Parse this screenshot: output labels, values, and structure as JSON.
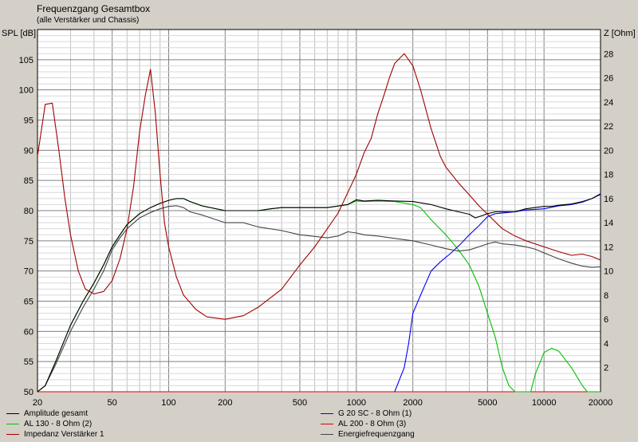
{
  "title": "Frequenzgang Gesamtbox",
  "subtitle": "(alle Verstärker und Chassis)",
  "chart_data": {
    "type": "line",
    "ylabel_left": "SPL [dB]",
    "ylabel_right": "Z [Ohm]",
    "xscale": "log",
    "xlim": [
      20,
      20000
    ],
    "ylim_left": [
      50,
      110
    ],
    "ylim_right": [
      0,
      30
    ],
    "x_ticks": [
      20,
      50,
      100,
      200,
      500,
      1000,
      2000,
      5000,
      10000,
      20000
    ],
    "x_tick_labels": [
      "20",
      "50",
      "100",
      "200",
      "500",
      "1000",
      "2000",
      "5000",
      "10000",
      "20000"
    ],
    "y_left_ticks": [
      50,
      55,
      60,
      65,
      70,
      75,
      80,
      85,
      90,
      95,
      100,
      105
    ],
    "y_right_ticks": [
      2,
      4,
      6,
      8,
      10,
      12,
      14,
      16,
      18,
      20,
      22,
      24,
      26,
      28
    ],
    "grid": true,
    "legend_position": "bottom",
    "series": [
      {
        "name": "Amplitude gesamt",
        "color": "#000000",
        "axis": "left",
        "points": [
          [
            20,
            50
          ],
          [
            22,
            51
          ],
          [
            25,
            55
          ],
          [
            30,
            61
          ],
          [
            35,
            65
          ],
          [
            40,
            68
          ],
          [
            45,
            71
          ],
          [
            50,
            74
          ],
          [
            55,
            76
          ],
          [
            60,
            77.7
          ],
          [
            70,
            79.5
          ],
          [
            80,
            80.5
          ],
          [
            90,
            81.2
          ],
          [
            100,
            81.7
          ],
          [
            110,
            82
          ],
          [
            120,
            82
          ],
          [
            130,
            81.5
          ],
          [
            150,
            80.8
          ],
          [
            200,
            80
          ],
          [
            250,
            80
          ],
          [
            300,
            80
          ],
          [
            350,
            80.3
          ],
          [
            400,
            80.5
          ],
          [
            500,
            80.5
          ],
          [
            700,
            80.5
          ],
          [
            900,
            81
          ],
          [
            1000,
            81.8
          ],
          [
            1100,
            81.6
          ],
          [
            1300,
            81.7
          ],
          [
            1600,
            81.6
          ],
          [
            2000,
            81.5
          ],
          [
            2500,
            81
          ],
          [
            3000,
            80.3
          ],
          [
            3500,
            79.8
          ],
          [
            4000,
            79.4
          ],
          [
            4300,
            78.8
          ],
          [
            4700,
            79.2
          ],
          [
            5000,
            79.5
          ],
          [
            5500,
            79.8
          ],
          [
            7000,
            79.8
          ],
          [
            8000,
            80.3
          ],
          [
            10000,
            80.7
          ],
          [
            11000,
            80.7
          ],
          [
            12000,
            80.9
          ],
          [
            14000,
            81.1
          ],
          [
            16000,
            81.5
          ],
          [
            18000,
            82
          ],
          [
            20000,
            82.7
          ]
        ]
      },
      {
        "name": "G 20 SC - 8 Ohm (1)",
        "color": "#0000ff",
        "axis": "left",
        "points": [
          [
            1600,
            50
          ],
          [
            1800,
            54
          ],
          [
            1900,
            58
          ],
          [
            2000,
            63
          ],
          [
            2200,
            66
          ],
          [
            2500,
            70
          ],
          [
            2800,
            71.5
          ],
          [
            3200,
            73
          ],
          [
            3600,
            74.5
          ],
          [
            4000,
            76
          ],
          [
            4500,
            77.5
          ],
          [
            5000,
            79
          ],
          [
            5500,
            79.5
          ],
          [
            7000,
            79.8
          ],
          [
            8000,
            80.1
          ],
          [
            10000,
            80.3
          ],
          [
            12000,
            80.8
          ],
          [
            14000,
            81
          ],
          [
            16000,
            81.4
          ],
          [
            18000,
            82
          ],
          [
            20000,
            82.8
          ]
        ]
      },
      {
        "name": "AL 130 - 8 Ohm (2)",
        "color": "#00c000",
        "axis": "left",
        "points": [
          [
            20,
            50
          ],
          [
            22,
            51
          ],
          [
            25,
            55
          ],
          [
            30,
            61
          ],
          [
            35,
            65
          ],
          [
            40,
            68
          ],
          [
            45,
            71
          ],
          [
            50,
            74
          ],
          [
            55,
            76
          ],
          [
            60,
            77.7
          ],
          [
            70,
            79.5
          ],
          [
            80,
            80.5
          ],
          [
            90,
            81.2
          ],
          [
            100,
            81.7
          ],
          [
            110,
            82
          ],
          [
            120,
            82
          ],
          [
            130,
            81.5
          ],
          [
            150,
            80.8
          ],
          [
            200,
            80
          ],
          [
            250,
            80
          ],
          [
            300,
            80
          ],
          [
            350,
            80.3
          ],
          [
            400,
            80.5
          ],
          [
            500,
            80.5
          ],
          [
            700,
            80.5
          ],
          [
            900,
            81
          ],
          [
            1000,
            81.6
          ],
          [
            1100,
            81.5
          ],
          [
            1300,
            81.6
          ],
          [
            1600,
            81.5
          ],
          [
            2000,
            81
          ],
          [
            2200,
            80.5
          ],
          [
            2500,
            78.5
          ],
          [
            3000,
            76
          ],
          [
            3500,
            73.5
          ],
          [
            4000,
            71
          ],
          [
            4500,
            67.5
          ],
          [
            5000,
            63
          ],
          [
            5500,
            59
          ],
          [
            6000,
            54
          ],
          [
            6500,
            51
          ],
          [
            7000,
            50
          ],
          [
            8500,
            50
          ],
          [
            9000,
            53
          ],
          [
            10000,
            56.5
          ],
          [
            11000,
            57.2
          ],
          [
            12000,
            56.7
          ],
          [
            14000,
            54
          ],
          [
            16000,
            51
          ],
          [
            17000,
            50
          ],
          [
            20000,
            50
          ]
        ]
      },
      {
        "name": "AL 200 - 8 Ohm (3)",
        "color": "#e00000",
        "axis": "left",
        "points": [
          [
            20,
            50
          ],
          [
            20000,
            50
          ]
        ]
      },
      {
        "name": "Impedanz Verstärker 1",
        "color": "#a00000",
        "axis": "right",
        "points": [
          [
            20,
            19.5
          ],
          [
            22,
            23.8
          ],
          [
            24,
            23.9
          ],
          [
            26,
            20
          ],
          [
            28,
            16
          ],
          [
            30,
            13
          ],
          [
            33,
            10
          ],
          [
            36,
            8.5
          ],
          [
            40,
            8.1
          ],
          [
            45,
            8.3
          ],
          [
            50,
            9.2
          ],
          [
            55,
            11
          ],
          [
            60,
            13.5
          ],
          [
            65,
            17
          ],
          [
            70,
            21.5
          ],
          [
            75,
            24.5
          ],
          [
            80,
            26.7
          ],
          [
            85,
            23
          ],
          [
            90,
            18
          ],
          [
            95,
            14
          ],
          [
            100,
            12
          ],
          [
            110,
            9.5
          ],
          [
            120,
            8
          ],
          [
            140,
            6.8
          ],
          [
            160,
            6.2
          ],
          [
            200,
            6
          ],
          [
            250,
            6.3
          ],
          [
            300,
            7
          ],
          [
            400,
            8.5
          ],
          [
            500,
            10.5
          ],
          [
            600,
            12
          ],
          [
            700,
            13.5
          ],
          [
            800,
            14.8
          ],
          [
            900,
            16.5
          ],
          [
            1000,
            18
          ],
          [
            1100,
            19.8
          ],
          [
            1200,
            21
          ],
          [
            1300,
            23
          ],
          [
            1400,
            24.5
          ],
          [
            1500,
            26
          ],
          [
            1600,
            27.2
          ],
          [
            1800,
            28
          ],
          [
            2000,
            27
          ],
          [
            2200,
            25
          ],
          [
            2500,
            21.8
          ],
          [
            2800,
            19.5
          ],
          [
            3000,
            18.6
          ],
          [
            3500,
            17.3
          ],
          [
            4000,
            16.3
          ],
          [
            4500,
            15.4
          ],
          [
            5000,
            14.7
          ],
          [
            6000,
            13.5
          ],
          [
            7000,
            12.9
          ],
          [
            8000,
            12.5
          ],
          [
            10000,
            12
          ],
          [
            12000,
            11.6
          ],
          [
            14000,
            11.3
          ],
          [
            16000,
            11.4
          ],
          [
            18000,
            11.2
          ],
          [
            20000,
            10.9
          ]
        ]
      },
      {
        "name": "Energiefrequenzgang",
        "color": "#444444",
        "axis": "left",
        "points": [
          [
            20,
            50
          ],
          [
            22,
            51
          ],
          [
            25,
            54.5
          ],
          [
            30,
            60
          ],
          [
            35,
            64
          ],
          [
            40,
            67
          ],
          [
            45,
            70
          ],
          [
            50,
            73.5
          ],
          [
            55,
            75.5
          ],
          [
            60,
            77
          ],
          [
            70,
            78.8
          ],
          [
            80,
            79.7
          ],
          [
            90,
            80.3
          ],
          [
            100,
            80.7
          ],
          [
            110,
            80.8
          ],
          [
            120,
            80.5
          ],
          [
            130,
            79.8
          ],
          [
            150,
            79.3
          ],
          [
            200,
            78
          ],
          [
            250,
            78
          ],
          [
            300,
            77.3
          ],
          [
            400,
            76.7
          ],
          [
            500,
            76
          ],
          [
            700,
            75.5
          ],
          [
            800,
            75.8
          ],
          [
            900,
            76.5
          ],
          [
            1000,
            76.3
          ],
          [
            1100,
            76
          ],
          [
            1300,
            75.8
          ],
          [
            1600,
            75.4
          ],
          [
            2000,
            75
          ],
          [
            2500,
            74.3
          ],
          [
            3000,
            73.7
          ],
          [
            3500,
            73.3
          ],
          [
            4000,
            73.5
          ],
          [
            4500,
            74
          ],
          [
            5000,
            74.5
          ],
          [
            5500,
            74.8
          ],
          [
            6000,
            74.5
          ],
          [
            7000,
            74.3
          ],
          [
            8000,
            74
          ],
          [
            9000,
            73.6
          ],
          [
            10000,
            73
          ],
          [
            12000,
            72
          ],
          [
            14000,
            71.3
          ],
          [
            16000,
            70.8
          ],
          [
            18000,
            70.6
          ],
          [
            20000,
            70.7
          ]
        ]
      }
    ]
  },
  "legend": {
    "left": [
      {
        "label": "Amplitude gesamt",
        "color": "#000000"
      },
      {
        "label": "AL 130 - 8 Ohm (2)",
        "color": "#00c000"
      },
      {
        "label": "Impedanz Verstärker 1",
        "color": "#a00000"
      }
    ],
    "right": [
      {
        "label": "G 20 SC - 8 Ohm (1)",
        "color": "#0000ff"
      },
      {
        "label": "AL 200 - 8 Ohm (3)",
        "color": "#e00000"
      },
      {
        "label": "Energiefrequenzgang",
        "color": "#444444"
      }
    ]
  }
}
